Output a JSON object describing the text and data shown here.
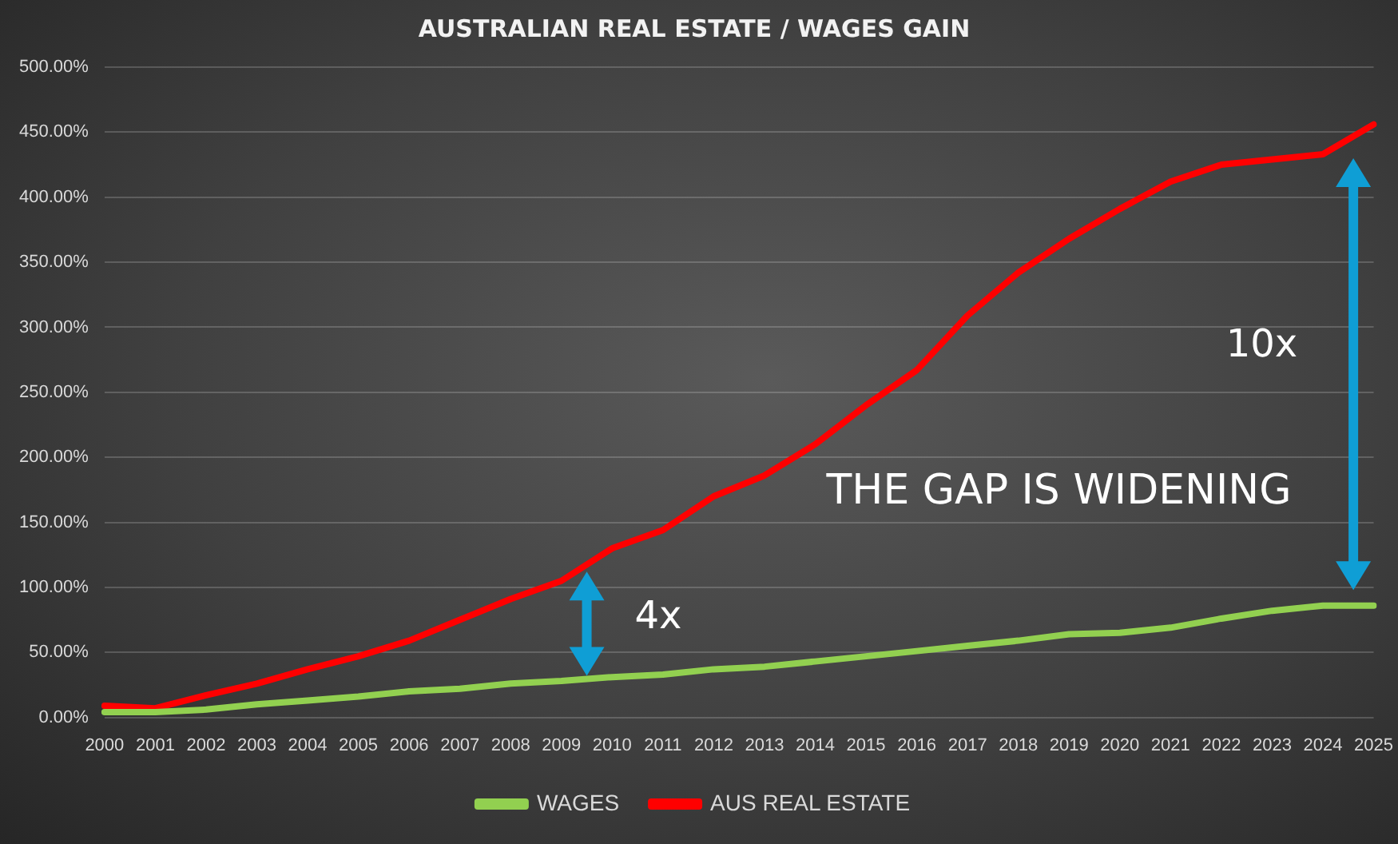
{
  "chart_data": {
    "type": "line",
    "title": "AUSTRALIAN REAL ESTATE / WAGES GAIN",
    "categories": [
      "2000",
      "2001",
      "2002",
      "2003",
      "2004",
      "2005",
      "2006",
      "2007",
      "2008",
      "2009",
      "2010",
      "2011",
      "2012",
      "2013",
      "2014",
      "2015",
      "2016",
      "2017",
      "2018",
      "2019",
      "2020",
      "2021",
      "2022",
      "2023",
      "2024",
      "2025"
    ],
    "series": [
      {
        "name": "WAGES",
        "color": "#92d050",
        "values": [
          4,
          4,
          6,
          10,
          13,
          16,
          20,
          22,
          26,
          28,
          31,
          33,
          37,
          39,
          43,
          47,
          51,
          55,
          59,
          64,
          65,
          69,
          76,
          82,
          86,
          86
        ]
      },
      {
        "name": "AUS REAL ESTATE",
        "color": "#ff0000",
        "values": [
          9,
          7,
          17,
          26,
          37,
          47,
          59,
          75,
          91,
          105,
          130,
          144,
          170,
          186,
          210,
          240,
          267,
          309,
          342,
          368,
          391,
          412,
          425,
          429,
          433,
          456
        ]
      }
    ],
    "ylim": [
      0,
      500
    ],
    "yticks": [
      {
        "value": 0,
        "label": "0.00%"
      },
      {
        "value": 50,
        "label": "50.00%"
      },
      {
        "value": 100,
        "label": "100.00%"
      },
      {
        "value": 150,
        "label": "150.00%"
      },
      {
        "value": 200,
        "label": "200.00%"
      },
      {
        "value": 250,
        "label": "250.00%"
      },
      {
        "value": 300,
        "label": "300.00%"
      },
      {
        "value": 350,
        "label": "350.00%"
      },
      {
        "value": 400,
        "label": "400.00%"
      },
      {
        "value": 450,
        "label": "450.00%"
      },
      {
        "value": 500,
        "label": "500.00%"
      }
    ],
    "grid": "y",
    "legend": "bottom",
    "marker": "none",
    "line_style": "solid",
    "annotations": [
      "4x",
      "10x",
      "THE GAP IS WIDENING"
    ]
  }
}
